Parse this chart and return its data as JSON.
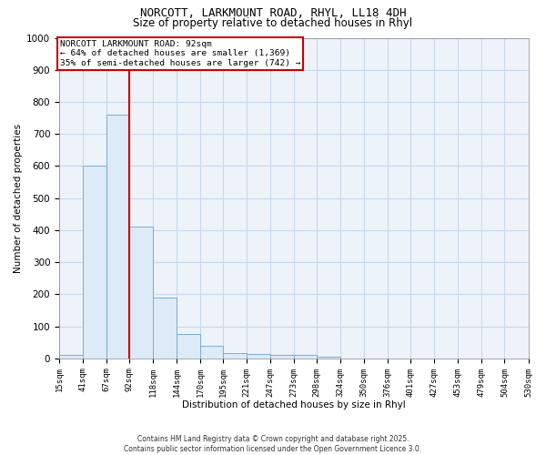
{
  "title_line1": "NORCOTT, LARKMOUNT ROAD, RHYL, LL18 4DH",
  "title_line2": "Size of property relative to detached houses in Rhyl",
  "xlabel": "Distribution of detached houses by size in Rhyl",
  "ylabel": "Number of detached properties",
  "bar_edges": [
    15,
    41,
    67,
    92,
    118,
    144,
    170,
    195,
    221,
    247,
    273,
    298,
    324,
    350,
    376,
    401,
    427,
    453,
    479,
    504,
    530
  ],
  "bar_heights": [
    10,
    600,
    760,
    410,
    190,
    75,
    40,
    18,
    14,
    10,
    10,
    4,
    0,
    0,
    0,
    0,
    0,
    0,
    0,
    0
  ],
  "bar_color": "#ddeaf7",
  "bar_edge_color": "#7aadd4",
  "red_line_x": 92,
  "ylim": [
    0,
    1000
  ],
  "yticks": [
    0,
    100,
    200,
    300,
    400,
    500,
    600,
    700,
    800,
    900,
    1000
  ],
  "annotation_title": "NORCOTT LARKMOUNT ROAD: 92sqm",
  "annotation_line2": "← 64% of detached houses are smaller (1,369)",
  "annotation_line3": "35% of semi-detached houses are larger (742) →",
  "annotation_box_color": "#ffffff",
  "annotation_border_color": "#cc0000",
  "grid_color": "#c8d8ea",
  "bg_color": "#eef3fa",
  "footnote1": "Contains HM Land Registry data © Crown copyright and database right 2025.",
  "footnote2": "Contains public sector information licensed under the Open Government Licence 3.0."
}
